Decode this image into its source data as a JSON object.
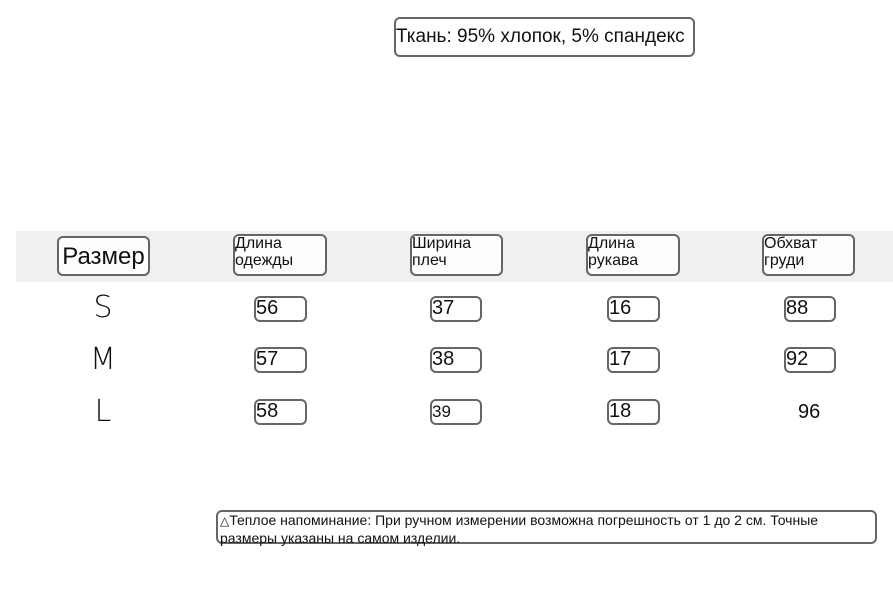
{
  "fabric": "Ткань: 95% хлопок, 5% спандекс",
  "table": {
    "headers": [
      "Размер",
      "Длина одежды",
      "Ширина плеч",
      "Длина рукава",
      "Обхват груди"
    ],
    "rows": [
      {
        "size": "S",
        "values": [
          "56",
          "37",
          "16",
          "88"
        ]
      },
      {
        "size": "M",
        "values": [
          "57",
          "38",
          "17",
          "92"
        ]
      },
      {
        "size": "L",
        "values": [
          "58",
          "39",
          "18",
          "96"
        ]
      }
    ]
  },
  "note": {
    "icon": "triangle-warning-icon",
    "symbol": "△",
    "text": "Теплое напоминание: При ручном измерении возможна погрешность от 1 до 2 см. Точные размеры указаны на самом изделии."
  }
}
